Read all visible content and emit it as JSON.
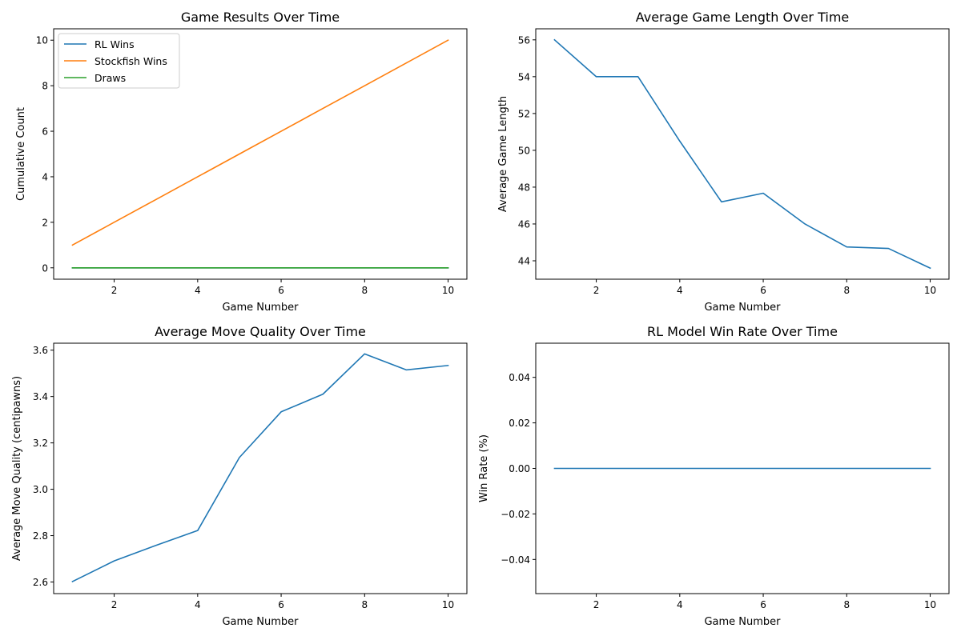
{
  "chart_data": [
    {
      "type": "line",
      "title": "Game Results Over Time",
      "xlabel": "Game Number",
      "ylabel": "Cumulative Count",
      "x": [
        1,
        2,
        3,
        4,
        5,
        6,
        7,
        8,
        9,
        10
      ],
      "xlim": [
        0.55,
        10.45
      ],
      "ylim": [
        -0.5,
        10.5
      ],
      "xticks": [
        2,
        4,
        6,
        8,
        10
      ],
      "yticks": [
        0,
        2,
        4,
        6,
        8,
        10
      ],
      "xtick_labels": [
        "2",
        "4",
        "6",
        "8",
        "10"
      ],
      "ytick_labels": [
        "0",
        "2",
        "4",
        "6",
        "8",
        "10"
      ],
      "grid": false,
      "legend": "upper-left",
      "series": [
        {
          "name": "RL Wins",
          "color": "#1f77b4",
          "values": [
            0,
            0,
            0,
            0,
            0,
            0,
            0,
            0,
            0,
            0
          ]
        },
        {
          "name": "Stockfish Wins",
          "color": "#ff7f0e",
          "values": [
            1,
            2,
            3,
            4,
            5,
            6,
            7,
            8,
            9,
            10
          ]
        },
        {
          "name": "Draws",
          "color": "#2ca02c",
          "values": [
            0,
            0,
            0,
            0,
            0,
            0,
            0,
            0,
            0,
            0
          ]
        }
      ]
    },
    {
      "type": "line",
      "title": "Average Game Length Over Time",
      "xlabel": "Game Number",
      "ylabel": "Average Game Length",
      "x": [
        1,
        2,
        3,
        4,
        5,
        6,
        7,
        8,
        9,
        10
      ],
      "xlim": [
        0.55,
        10.45
      ],
      "ylim": [
        43.0,
        56.6
      ],
      "xticks": [
        2,
        4,
        6,
        8,
        10
      ],
      "yticks": [
        44,
        46,
        48,
        50,
        52,
        54,
        56
      ],
      "xtick_labels": [
        "2",
        "4",
        "6",
        "8",
        "10"
      ],
      "ytick_labels": [
        "44",
        "46",
        "48",
        "50",
        "52",
        "54",
        "56"
      ],
      "grid": false,
      "series": [
        {
          "color": "#1f77b4",
          "values": [
            56.0,
            54.0,
            54.0,
            50.5,
            47.2,
            47.67,
            46.0,
            44.75,
            44.67,
            43.6
          ]
        }
      ]
    },
    {
      "type": "line",
      "title": "Average Move Quality Over Time",
      "xlabel": "Game Number",
      "ylabel": "Average Move Quality (centipawns)",
      "x": [
        1,
        2,
        3,
        4,
        5,
        6,
        7,
        8,
        9,
        10
      ],
      "xlim": [
        0.55,
        10.45
      ],
      "ylim": [
        2.55,
        3.63
      ],
      "xticks": [
        2,
        4,
        6,
        8,
        10
      ],
      "yticks": [
        2.6,
        2.8,
        3.0,
        3.2,
        3.4,
        3.6
      ],
      "xtick_labels": [
        "2",
        "4",
        "6",
        "8",
        "10"
      ],
      "ytick_labels": [
        "2.6",
        "2.8",
        "3.0",
        "3.2",
        "3.4",
        "3.6"
      ],
      "grid": false,
      "series": [
        {
          "color": "#1f77b4",
          "values": [
            2.602,
            2.691,
            2.758,
            2.822,
            3.137,
            3.334,
            3.41,
            3.584,
            3.515,
            3.534
          ]
        }
      ]
    },
    {
      "type": "line",
      "title": "RL Model Win Rate Over Time",
      "xlabel": "Game Number",
      "ylabel": "Win Rate (%)",
      "x": [
        1,
        2,
        3,
        4,
        5,
        6,
        7,
        8,
        9,
        10
      ],
      "xlim": [
        0.55,
        10.45
      ],
      "ylim": [
        -0.055,
        0.055
      ],
      "xticks": [
        2,
        4,
        6,
        8,
        10
      ],
      "yticks": [
        -0.04,
        -0.02,
        0.0,
        0.02,
        0.04
      ],
      "xtick_labels": [
        "2",
        "4",
        "6",
        "8",
        "10"
      ],
      "ytick_labels": [
        "−0.04",
        "−0.02",
        "0.00",
        "0.02",
        "0.04"
      ],
      "grid": false,
      "series": [
        {
          "color": "#1f77b4",
          "values": [
            0,
            0,
            0,
            0,
            0,
            0,
            0,
            0,
            0,
            0
          ]
        }
      ]
    }
  ]
}
